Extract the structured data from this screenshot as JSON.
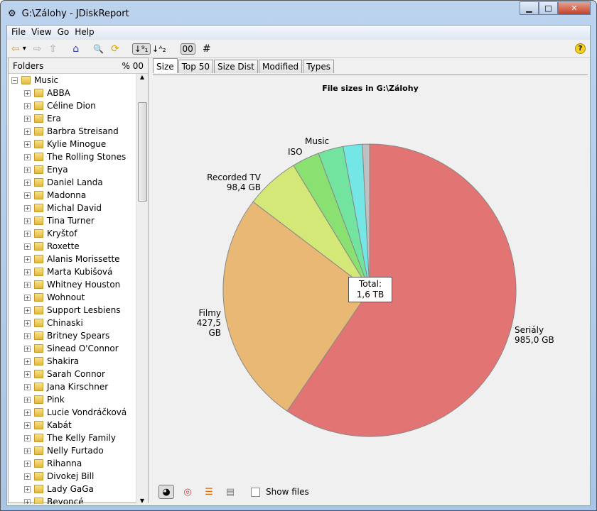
{
  "window": {
    "title": "G:\\Zálohy - JDiskReport",
    "minimize": "▁",
    "maximize": "□",
    "close": "✕"
  },
  "menu": [
    "File",
    "View",
    "Go",
    "Help"
  ],
  "toolbar": {
    "back": "⇦",
    "dropdown": "▾",
    "forward": "⇨",
    "up": "⇧",
    "home": "⌂",
    "search": "🔍",
    "refresh": "⟳",
    "sort_size": "↓⁹₁",
    "sort_name": "↓ᴬ₂",
    "size_units": "00",
    "count": "#",
    "help": "?"
  },
  "left": {
    "header": "Folders",
    "percent": "%",
    "units": "00",
    "root": "Music",
    "items": [
      "ABBA",
      "Céline Dion",
      "Era",
      "Barbra Streisand",
      "Kylie Minogue",
      "The Rolling Stones",
      "Enya",
      "Daniel Landa",
      "Madonna",
      "Michal David",
      "Tina Turner",
      "Kryštof",
      "Roxette",
      "Alanis Morissette",
      "Marta Kubišová",
      "Whitney Houston",
      "Wohnout",
      "Support Lesbiens",
      "Chinaski",
      "Britney Spears",
      "Sinead O'Connor",
      "Shakira",
      "Sarah Connor",
      "Jana Kirschner",
      "Pink",
      "Lucie Vondráčková",
      "Kabát",
      "The Kelly Family",
      "Nelly Furtado",
      "Rihanna",
      "Divokej Bill",
      "Lady GaGa",
      "Beyoncé"
    ]
  },
  "tabs": [
    "Size",
    "Top 50",
    "Size Dist",
    "Modified",
    "Types"
  ],
  "bottom": {
    "show_files": "Show files",
    "show_files_checked": false
  },
  "chart_data": {
    "type": "pie",
    "title": "File sizes in G:\\Zálohy",
    "total_label": "Total:",
    "total_value": "1,6 TB",
    "slices": [
      {
        "name": "Seriály",
        "label": "985,0 GB",
        "value": 985.0,
        "color": "#e37474"
      },
      {
        "name": "Filmy",
        "label": "427,5 GB",
        "value": 427.5,
        "color": "#e8b874"
      },
      {
        "name": "Recorded TV",
        "label": "98,4 GB",
        "value": 98.4,
        "color": "#d4e878"
      },
      {
        "name": "ISO",
        "label": "",
        "value": 50,
        "color": "#8ae070"
      },
      {
        "name": "Music",
        "label": "",
        "value": 46,
        "color": "#72e4a0"
      },
      {
        "name": "",
        "label": "",
        "value": 35,
        "color": "#74e6e6"
      },
      {
        "name": "",
        "label": "",
        "value": 13,
        "color": "#c0c0c0"
      }
    ]
  }
}
